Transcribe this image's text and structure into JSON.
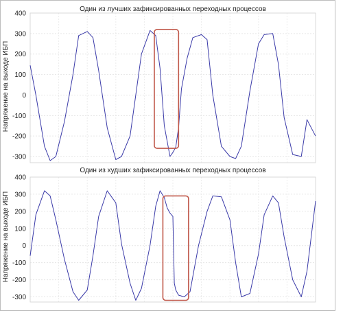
{
  "chart_data": [
    {
      "type": "line",
      "title": "Один из лучших зафиксированных переходных процессов",
      "ylabel": "Напряжение на выходе ИБП",
      "xlabel": "",
      "ylim": [
        -330,
        400
      ],
      "yticks": [
        400,
        300,
        200,
        100,
        0,
        -100,
        -200,
        -300
      ],
      "xlim": [
        0,
        1
      ],
      "grid": true,
      "series": [
        {
          "color": "#3a3aa8",
          "x": [
            0.0,
            0.02,
            0.05,
            0.07,
            0.09,
            0.12,
            0.15,
            0.17,
            0.2,
            0.22,
            0.24,
            0.27,
            0.3,
            0.32,
            0.35,
            0.37,
            0.39,
            0.42,
            0.44,
            0.455,
            0.47,
            0.49,
            0.5,
            0.51,
            0.52,
            0.53,
            0.55,
            0.57,
            0.6,
            0.62,
            0.64,
            0.67,
            0.7,
            0.72,
            0.74,
            0.77,
            0.8,
            0.82,
            0.85,
            0.87,
            0.89,
            0.92,
            0.95,
            0.97,
            1.0
          ],
          "y": [
            145,
            0,
            -250,
            -320,
            -300,
            -130,
            100,
            290,
            310,
            280,
            120,
            -160,
            -315,
            -300,
            -200,
            0,
            200,
            315,
            290,
            130,
            -150,
            -300,
            -280,
            -255,
            -160,
            30,
            180,
            280,
            295,
            270,
            0,
            -250,
            -300,
            -310,
            -250,
            20,
            250,
            295,
            300,
            150,
            -110,
            -290,
            -300,
            -120,
            -200
          ]
        }
      ],
      "annotations": [
        {
          "type": "highlight-box",
          "color": "#c0584a",
          "x_range": [
            0.435,
            0.52
          ],
          "y_range": [
            -260,
            320
          ]
        }
      ]
    },
    {
      "type": "line",
      "title": "Один из худших зафиксированных переходных процессов",
      "ylabel": "Напряжение на выходе ИБП",
      "xlabel": "",
      "ylim": [
        -330,
        400
      ],
      "yticks": [
        400,
        300,
        200,
        100,
        0,
        -100,
        -200,
        -300
      ],
      "xlim": [
        0,
        1
      ],
      "grid": true,
      "series": [
        {
          "color": "#3a3aa8",
          "x": [
            0.0,
            0.02,
            0.05,
            0.07,
            0.09,
            0.12,
            0.15,
            0.17,
            0.2,
            0.22,
            0.24,
            0.27,
            0.3,
            0.32,
            0.35,
            0.37,
            0.39,
            0.42,
            0.44,
            0.455,
            0.47,
            0.48,
            0.49,
            0.5,
            0.505,
            0.51,
            0.52,
            0.54,
            0.56,
            0.59,
            0.62,
            0.64,
            0.67,
            0.7,
            0.72,
            0.74,
            0.77,
            0.8,
            0.82,
            0.85,
            0.87,
            0.89,
            0.92,
            0.95,
            0.97,
            1.0
          ],
          "y": [
            -60,
            180,
            320,
            290,
            150,
            -80,
            -270,
            -320,
            -260,
            -60,
            170,
            320,
            250,
            10,
            -220,
            -320,
            -250,
            0,
            230,
            320,
            280,
            220,
            190,
            170,
            -220,
            -260,
            -290,
            -300,
            -270,
            0,
            200,
            290,
            285,
            150,
            -100,
            -300,
            -280,
            -50,
            180,
            290,
            250,
            50,
            -200,
            -300,
            -150,
            260
          ]
        }
      ],
      "annotations": [
        {
          "type": "highlight-box",
          "color": "#c0584a",
          "x_range": [
            0.465,
            0.555
          ],
          "y_range": [
            -320,
            290
          ]
        }
      ]
    }
  ]
}
